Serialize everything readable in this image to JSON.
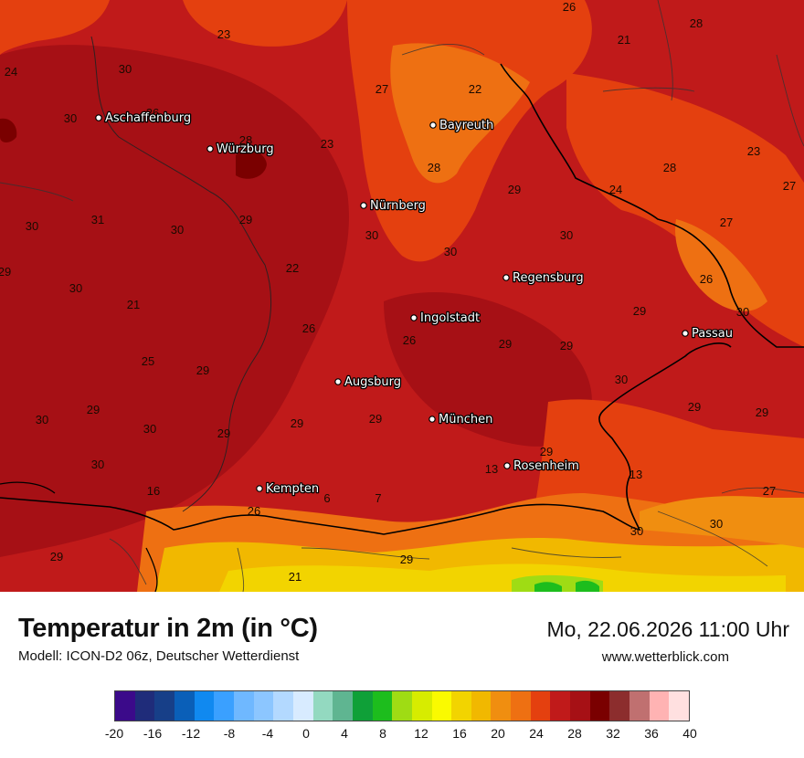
{
  "header": {
    "title": "Temperatur in 2m (in °C)",
    "subtitle": "Modell: ICON-D2 06z, Deutscher Wetterdienst",
    "datetime": "Mo, 22.06.2026 11:00 Uhr",
    "website": "www.wetterblick.com"
  },
  "legend": {
    "ticks": [
      "-20",
      "-16",
      "-12",
      "-8",
      "-4",
      "0",
      "4",
      "8",
      "12",
      "16",
      "20",
      "24",
      "28",
      "32",
      "36",
      "40"
    ],
    "colors": [
      "#3b0a8a",
      "#1f2c7a",
      "#173f88",
      "#0a5fb8",
      "#1089f0",
      "#3aa0ff",
      "#6fb8ff",
      "#8cc6ff",
      "#b3d9ff",
      "#d8ebff",
      "#93d9c0",
      "#5fb591",
      "#0fa038",
      "#1dbd1d",
      "#9fdc14",
      "#d7ec00",
      "#fafa00",
      "#f2d400",
      "#f1b800",
      "#f08e10",
      "#ee7012",
      "#e4400f",
      "#c01a1a",
      "#a61015",
      "#7a0000",
      "#8c2d2d",
      "#c07070",
      "#ffb3b3",
      "#ffe0e0"
    ]
  },
  "map": {
    "cities": [
      {
        "name": "Aschaffenburg"
      },
      {
        "name": "Würzburg"
      },
      {
        "name": "Bayreuth"
      },
      {
        "name": "Nürnberg"
      },
      {
        "name": "Regensburg"
      },
      {
        "name": "Ingolstadt"
      },
      {
        "name": "Passau"
      },
      {
        "name": "Augsburg"
      },
      {
        "name": "München"
      },
      {
        "name": "Rosenheim"
      },
      {
        "name": "Kempten"
      }
    ],
    "temperature_labels": [
      "26",
      "23",
      "21",
      "28",
      "24",
      "30",
      "27",
      "22",
      "30",
      "26",
      "28",
      "23",
      "23",
      "28",
      "28",
      "27",
      "30",
      "31",
      "30",
      "29",
      "29",
      "24",
      "27",
      "30",
      "30",
      "30",
      "29",
      "22",
      "30",
      "21",
      "26",
      "30",
      "26",
      "29",
      "29",
      "26",
      "29",
      "25",
      "29",
      "30",
      "30",
      "29",
      "29",
      "29",
      "30",
      "29",
      "29",
      "29",
      "30",
      "29",
      "29",
      "13",
      "13",
      "16",
      "30",
      "30",
      "27",
      "26",
      "6",
      "7",
      "29",
      "29",
      "21"
    ]
  }
}
